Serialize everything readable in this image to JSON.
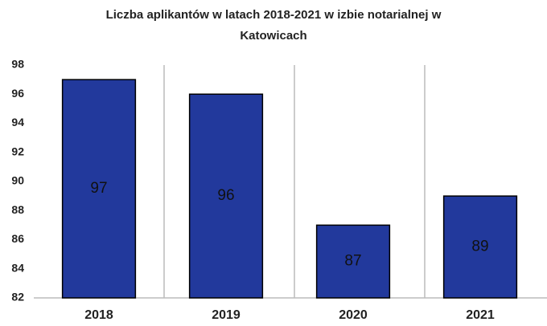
{
  "chart_data": {
    "type": "bar",
    "title": "Liczba aplikantów w latach 2018-2021 w izbie notarialnej w Katowicach",
    "categories": [
      "2018",
      "2019",
      "2020",
      "2021"
    ],
    "values": [
      97,
      96,
      87,
      89
    ],
    "color": "#22399c",
    "ylim": [
      82,
      98
    ],
    "yticks": [
      82,
      84,
      86,
      88,
      90,
      92,
      94,
      96,
      98
    ],
    "grid": false
  }
}
